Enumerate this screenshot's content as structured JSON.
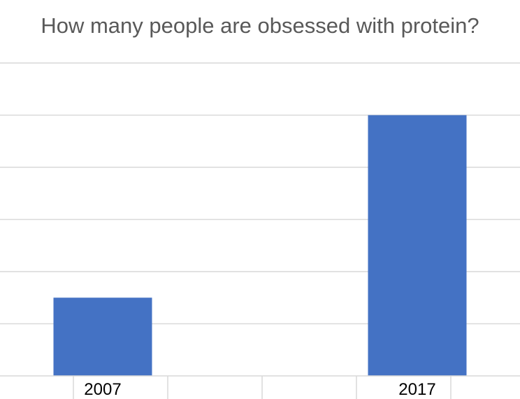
{
  "chart_data": {
    "type": "bar",
    "title": "How many people are obsessed with protein?",
    "categories": [
      "2007",
      "2017"
    ],
    "values": [
      1.5,
      5
    ],
    "ylim": [
      0,
      6
    ],
    "grid": true,
    "legend": "none",
    "colors": {
      "bar": "#4472c4",
      "grid": "#d9d9d9",
      "title": "#595959",
      "tick": "#000000"
    }
  }
}
